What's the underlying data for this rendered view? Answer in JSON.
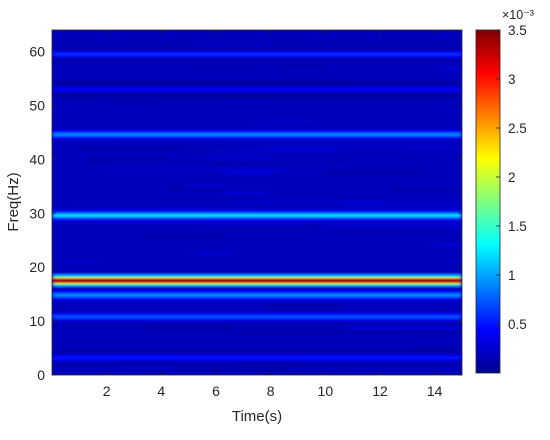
{
  "chart_data": {
    "type": "heatmap",
    "title": "",
    "xlabel": "Time(s)",
    "ylabel": "Freq(Hz)",
    "xlim": [
      0,
      15
    ],
    "ylim": [
      0,
      64
    ],
    "x_ticks": [
      2,
      4,
      6,
      8,
      10,
      12,
      14
    ],
    "y_ticks": [
      0,
      10,
      20,
      30,
      40,
      50,
      60
    ],
    "colorbar": {
      "colormap": "jet",
      "range": [
        0,
        0.0035
      ],
      "ticks": [
        0.5,
        1,
        1.5,
        2,
        2.5,
        3,
        3.5
      ],
      "exponent_label": "×10⁻³"
    },
    "background_level": 0.0002,
    "ridges": [
      {
        "freq_hz": 17.5,
        "peak": 0.0035,
        "width_hz": 0.45
      },
      {
        "freq_hz": 14.8,
        "peak": 0.0009,
        "width_hz": 0.5
      },
      {
        "freq_hz": 29.6,
        "peak": 0.0012,
        "width_hz": 0.45
      },
      {
        "freq_hz": 44.6,
        "peak": 0.0009,
        "width_hz": 0.45
      },
      {
        "freq_hz": 59.5,
        "peak": 0.0006,
        "width_hz": 0.45
      },
      {
        "freq_hz": 10.8,
        "peak": 0.0007,
        "width_hz": 0.5
      },
      {
        "freq_hz": 3.2,
        "peak": 0.0005,
        "width_hz": 0.5
      },
      {
        "freq_hz": 53.0,
        "peak": 0.0004,
        "width_hz": 0.5
      }
    ]
  }
}
